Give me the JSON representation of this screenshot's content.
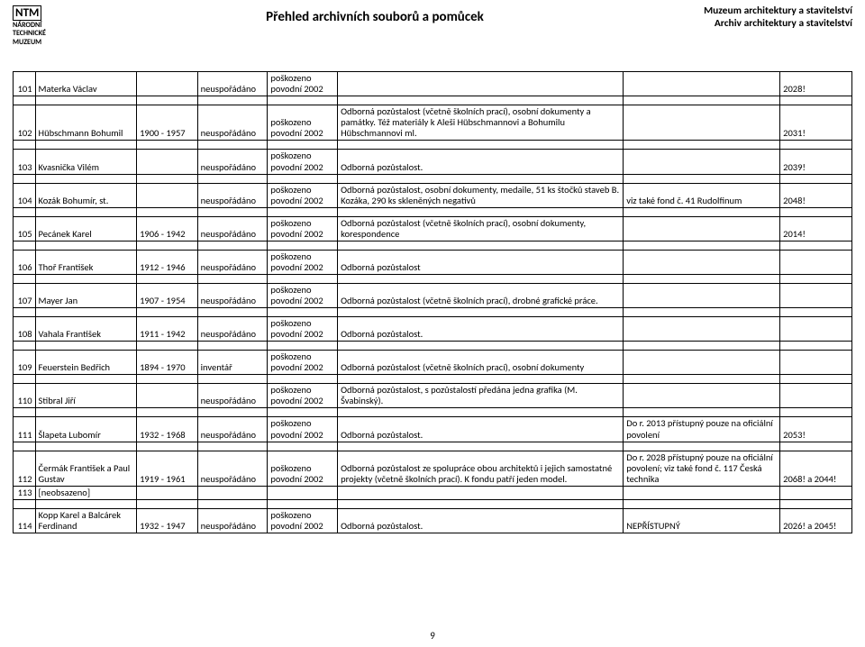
{
  "header": {
    "logo_main": "NTM",
    "logo_sub1": "NÁRODNÍ",
    "logo_sub2": "TECHNICKÉ",
    "logo_sub3": "MUZEUM",
    "title": "Přehled archivních souborů a pomůcek",
    "inst1": "Muzeum architektury a stavitelství",
    "inst2": "Archiv architektury a stavitelství"
  },
  "page_number": "9",
  "labels": {
    "damaged": "poškozeno",
    "unsorted": "neuspořádáno",
    "flood": "povodní 2002",
    "inventory": "inventář"
  },
  "rows": [
    {
      "n": "101",
      "name": "Materka Václav",
      "yrs": "",
      "arr": "neuspořádáno",
      "desc": "",
      "note": "",
      "ref": "2028!"
    },
    {
      "n": "102",
      "name": "Hübschmann Bohumil",
      "yrs": "1900 - 1957",
      "arr": "neuspořádáno",
      "desc": "Odborná pozůstalost (včetně školních prací), osobní dokumenty a památky. Též materiály k Aleši Hübschmannovi a Bohumilu Hübschmannovi ml.",
      "note": "",
      "ref": "2031!"
    },
    {
      "n": "103",
      "name": "Kvasnička Vilém",
      "yrs": "",
      "arr": "neuspořádáno",
      "desc": "Odborná pozůstalost.",
      "note": "",
      "ref": "2039!"
    },
    {
      "n": "104",
      "name": "Kozák Bohumír, st.",
      "yrs": "",
      "arr": "neuspořádáno",
      "desc": "Odborná pozůstalost, osobní dokumenty, medaile, 51 ks štočků staveb B. Kozáka, 290 ks skleněných negativů",
      "note": "viz také fond č. 41 Rudolfinum",
      "ref": "2048!"
    },
    {
      "n": "105",
      "name": "Pecánek Karel",
      "yrs": "1906 - 1942",
      "arr": "neuspořádáno",
      "desc": "Odborná pozůstalost (včetně školních prací), osobní dokumenty, korespondence",
      "note": "",
      "ref": "2014!"
    },
    {
      "n": "106",
      "name": "Thoř František",
      "yrs": "1912 - 1946",
      "arr": "neuspořádáno",
      "desc": "Odborná pozůstalost",
      "note": "",
      "ref": ""
    },
    {
      "n": "107",
      "name": "Mayer Jan",
      "yrs": "1907 - 1954",
      "arr": "neuspořádáno",
      "desc": "Odborná pozůstalost (včetně školních prací), drobné grafické práce.",
      "note": "",
      "ref": ""
    },
    {
      "n": "108",
      "name": "Vahala František",
      "yrs": "1911 - 1942",
      "arr": "neuspořádáno",
      "desc": "Odborná pozůstalost.",
      "note": "",
      "ref": ""
    },
    {
      "n": "109",
      "name": "Feuerstein Bedřich",
      "yrs": "1894 - 1970",
      "arr": "inventář",
      "desc": "Odborná pozůstalost (včetně školních prací), osobní dokumenty",
      "note": "",
      "ref": ""
    },
    {
      "n": "110",
      "name": "Stibral Jiří",
      "yrs": "",
      "arr": "neuspořádáno",
      "desc": "Odborná pozůstalost, s pozůstalostí předána jedna grafika (M. Švabinský).",
      "note": "",
      "ref": ""
    },
    {
      "n": "111",
      "name": "Šlapeta Lubomír",
      "yrs": "1932 - 1968",
      "arr": "neuspořádáno",
      "desc": "Odborná pozůstalost.",
      "note": "Do r. 2013 přístupný pouze na oficiální povolení",
      "ref": "2053!"
    },
    {
      "n": "112",
      "name": "Čermák František a Paul Gustav",
      "yrs": "1919 - 1961",
      "arr": "neuspořádáno",
      "desc": "Odborná pozůstalost ze spolupráce obou architektů i jejich samostatné projekty (včetně školních prací). K fondu patří jeden model.",
      "note": "Do r. 2028 přístupný pouze na oficiální povolení; viz také fond č. 117 Česká technika",
      "ref": "2068! a 2044!"
    },
    {
      "n": "113",
      "name": "[neobsazeno]",
      "yrs": "",
      "arr": "",
      "nostate": true,
      "desc": "",
      "note": "",
      "ref": ""
    },
    {
      "n": "114",
      "name": "Kopp Karel a Balcárek Ferdinand",
      "yrs": "1932 - 1947",
      "arr": "neuspořádáno",
      "desc": "Odborná pozůstalost.",
      "note": "NEPŘÍSTUPNÝ",
      "ref": "2026! a 2045!"
    }
  ]
}
